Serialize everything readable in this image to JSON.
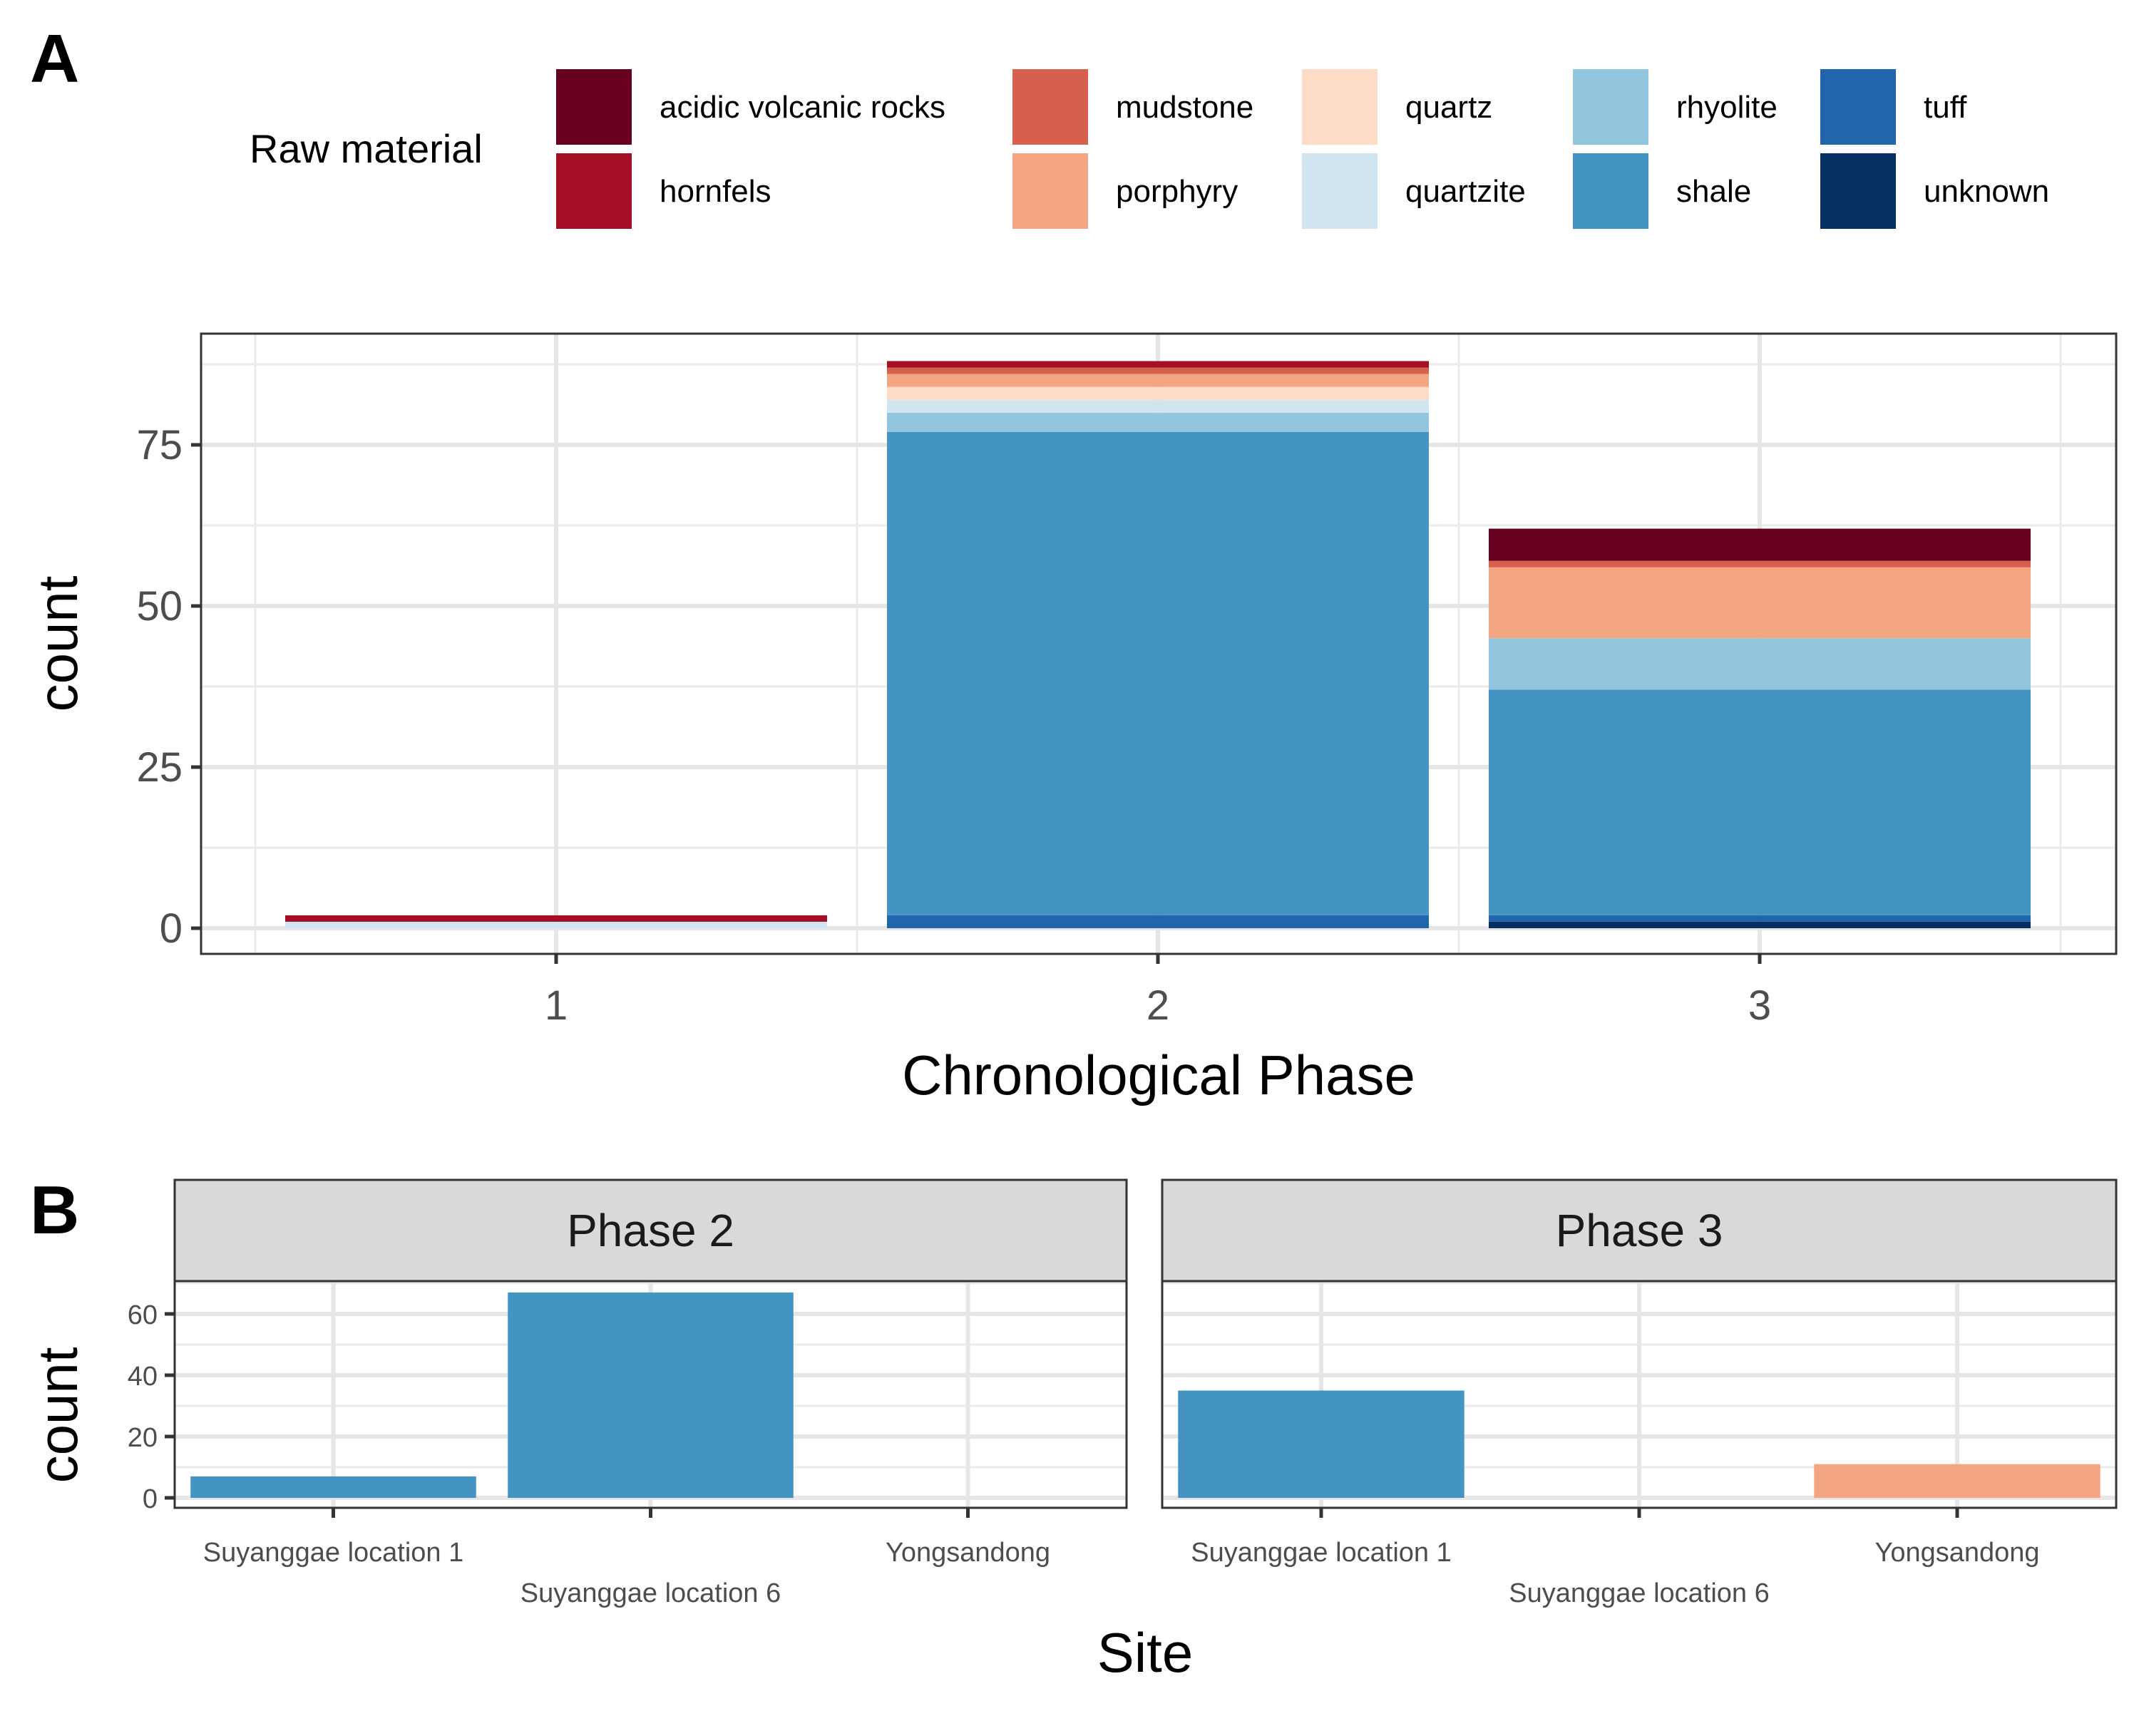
{
  "legend": {
    "title": "Raw material",
    "items": [
      {
        "label": "acidic volcanic rocks",
        "color": "#67001F"
      },
      {
        "label": "hornfels",
        "color": "#A50F26"
      },
      {
        "label": "mudstone",
        "color": "#D6604D"
      },
      {
        "label": "porphyry",
        "color": "#F4A582"
      },
      {
        "label": "quartz",
        "color": "#FDDBC7"
      },
      {
        "label": "quartzite",
        "color": "#D1E5F0"
      },
      {
        "label": "rhyolite",
        "color": "#92C5DE"
      },
      {
        "label": "shale",
        "color": "#4393C3"
      },
      {
        "label": "tuff",
        "color": "#2166AC"
      },
      {
        "label": "unknown",
        "color": "#053061"
      }
    ]
  },
  "chart_data": [
    {
      "panel": "A",
      "type": "bar",
      "stacked": true,
      "categories": [
        "1",
        "2",
        "3"
      ],
      "xlabel": "Chronological Phase",
      "ylabel": "count",
      "ylim": [
        0,
        90
      ],
      "yticks": [
        0,
        25,
        50,
        75
      ],
      "grid": true,
      "series": [
        {
          "name": "unknown",
          "values": [
            0,
            0,
            1
          ]
        },
        {
          "name": "tuff",
          "values": [
            0,
            2,
            1
          ]
        },
        {
          "name": "shale",
          "values": [
            0,
            75,
            35
          ]
        },
        {
          "name": "rhyolite",
          "values": [
            0,
            3,
            8
          ]
        },
        {
          "name": "quartzite",
          "values": [
            1,
            2,
            0
          ]
        },
        {
          "name": "quartz",
          "values": [
            0,
            2,
            0
          ]
        },
        {
          "name": "porphyry",
          "values": [
            0,
            2,
            11
          ]
        },
        {
          "name": "mudstone",
          "values": [
            0,
            1,
            1
          ]
        },
        {
          "name": "hornfels",
          "values": [
            1,
            1,
            0
          ]
        },
        {
          "name": "acidic volcanic rocks",
          "values": [
            0,
            0,
            5
          ]
        }
      ]
    },
    {
      "panel": "B",
      "type": "bar",
      "xlabel": "Site",
      "ylabel": "count",
      "ylim": [
        0,
        70
      ],
      "yticks": [
        0,
        20,
        40,
        60
      ],
      "facets": [
        {
          "label": "Phase 2",
          "categories": [
            "Suyanggae location 1",
            "Suyanggae location 6",
            "Yongsandong"
          ],
          "bars": [
            {
              "category": "Suyanggae location 1",
              "material": "shale",
              "value": 7
            },
            {
              "category": "Suyanggae location 6",
              "material": "shale",
              "value": 67
            }
          ]
        },
        {
          "label": "Phase 3",
          "categories": [
            "Suyanggae location 1",
            "Suyanggae location 6",
            "Yongsandong"
          ],
          "bars": [
            {
              "category": "Suyanggae location 1",
              "material": "shale",
              "value": 35
            },
            {
              "category": "Yongsandong",
              "material": "porphyry",
              "value": 11
            }
          ]
        }
      ]
    }
  ],
  "panel_labels": {
    "a": "A",
    "b": "B"
  }
}
